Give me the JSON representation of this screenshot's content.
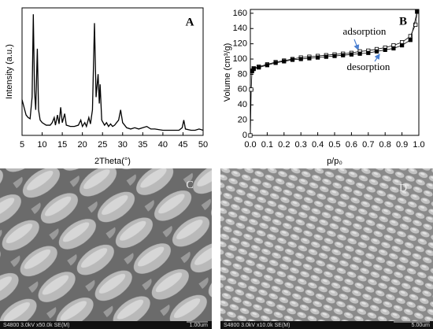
{
  "chart_data": [
    {
      "type": "line",
      "panel": "A",
      "x_label": "2Theta(°)",
      "y_label": "Intensity (a.u.)",
      "xlim": [
        5,
        50
      ],
      "xticks": [
        5,
        10,
        15,
        20,
        25,
        30,
        35,
        40,
        45,
        50
      ],
      "ylim": [
        0,
        100
      ],
      "series": [
        {
          "color": "#000000",
          "x": [
            5,
            5.5,
            6,
            6.5,
            7,
            7.5,
            7.8,
            8.1,
            8.4,
            8.8,
            9.1,
            9.5,
            10,
            11,
            12,
            12.5,
            13,
            13.3,
            13.8,
            14.2,
            14.6,
            15,
            15.6,
            16,
            17,
            18,
            19,
            19.6,
            20,
            20.6,
            21,
            21.6,
            22,
            22.5,
            23,
            23.4,
            23.9,
            24.2,
            24.4,
            24.8,
            25.5,
            26,
            26.5,
            27,
            27.5,
            28,
            29,
            29.5,
            30,
            31,
            32,
            33,
            34,
            35,
            36,
            37,
            38,
            40,
            42,
            44,
            44.8,
            45.2,
            45.6,
            47,
            48,
            49,
            50
          ],
          "values": [
            28,
            22,
            16,
            14,
            13,
            30,
            95,
            35,
            20,
            68,
            20,
            12,
            10,
            8,
            8,
            10,
            14,
            8,
            16,
            9,
            22,
            10,
            17,
            8,
            7,
            7,
            8,
            12,
            7,
            10,
            7,
            14,
            9,
            20,
            88,
            30,
            48,
            25,
            40,
            12,
            8,
            10,
            7,
            9,
            7,
            8,
            12,
            20,
            10,
            6,
            5,
            6,
            5,
            6,
            7,
            5,
            5,
            4,
            4,
            4,
            6,
            12,
            5,
            4,
            4,
            5,
            4
          ]
        }
      ]
    },
    {
      "type": "line",
      "panel": "B",
      "x_label": "p/p₀",
      "y_label": "Volume (cm³/g)",
      "annotations": [
        "adsorption",
        "desorption"
      ],
      "xlim": [
        0,
        1
      ],
      "xticks": [
        {
          "value": 0,
          "label": "0.0"
        },
        0.1,
        0.2,
        0.3,
        0.4,
        0.5,
        0.6,
        0.7,
        0.8,
        0.9,
        {
          "value": 1,
          "label": "1.0"
        }
      ],
      "ylim": [
        0,
        165
      ],
      "yticks": [
        0,
        20,
        40,
        60,
        80,
        100,
        120,
        140,
        160
      ],
      "series": [
        {
          "name": "adsorption",
          "color": "#000000",
          "marker": "open-square",
          "x": [
            0,
            0.005,
            0.01,
            0.02,
            0.05,
            0.1,
            0.15,
            0.2,
            0.25,
            0.3,
            0.35,
            0.4,
            0.45,
            0.5,
            0.55,
            0.6,
            0.65,
            0.7,
            0.75,
            0.8,
            0.85,
            0.9,
            0.95,
            0.98,
            0.99
          ],
          "values": [
            0,
            60,
            85,
            88,
            90,
            93,
            96,
            98,
            100,
            102,
            103,
            104,
            105,
            106,
            107,
            108,
            110,
            111,
            113,
            115,
            118,
            122,
            130,
            145,
            162
          ]
        },
        {
          "name": "desorption",
          "color": "#000000",
          "marker": "filled-square",
          "x": [
            0.99,
            0.95,
            0.9,
            0.85,
            0.8,
            0.75,
            0.7,
            0.65,
            0.6,
            0.55,
            0.5,
            0.45,
            0.4,
            0.35,
            0.3,
            0.25,
            0.2,
            0.15,
            0.1,
            0.05,
            0.02,
            0.01
          ],
          "values": [
            162,
            125,
            118,
            114,
            112,
            110,
            108,
            107,
            106,
            105,
            104,
            103,
            102,
            101,
            100,
            99,
            97,
            95,
            92,
            89,
            87,
            84
          ]
        }
      ]
    }
  ],
  "images": [
    {
      "label": "C",
      "caption": "S4800 3.0kV x50.0k SE(M)",
      "scale": "1.00um"
    },
    {
      "label": "D",
      "caption": "S4800 3.0kV x10.0k SE(M)",
      "scale": "5.00um"
    }
  ]
}
